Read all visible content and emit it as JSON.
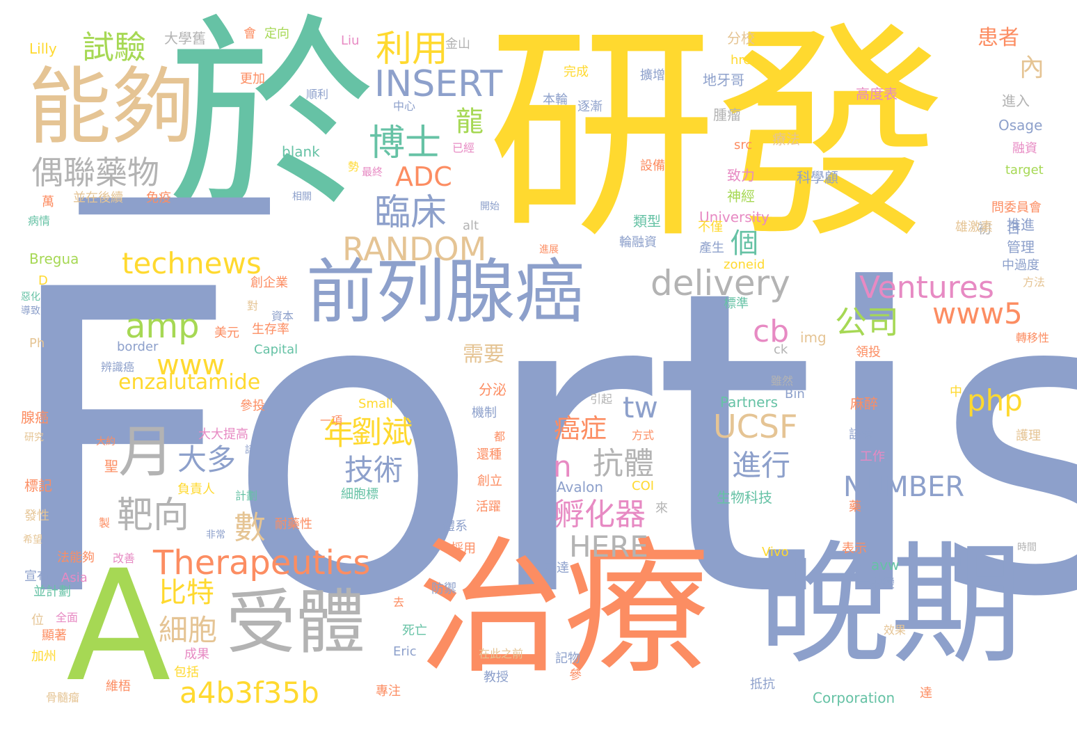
{
  "palette": {
    "blue": "#8da0cb",
    "yellow": "#ffd92f",
    "orange": "#fc8d62",
    "teal": "#66c2a5",
    "green": "#a6d854",
    "pink": "#e78ac3",
    "tan": "#e5c494",
    "gray": "#b3b3b3"
  },
  "words": [
    {
      "t": "Fortis",
      "c": "blue"
    },
    {
      "t": "研發",
      "c": "yellow"
    },
    {
      "t": "於",
      "c": "teal"
    },
    {
      "t": "治療",
      "c": "orange"
    },
    {
      "t": "晚期",
      "c": "blue"
    },
    {
      "t": "A",
      "c": "green"
    },
    {
      "t": "能夠",
      "c": "tan"
    },
    {
      "t": "一",
      "c": "blue"
    },
    {
      "t": "受體",
      "c": "gray"
    },
    {
      "t": "前列腺癌",
      "c": "blue"
    },
    {
      "t": "月",
      "c": "gray"
    },
    {
      "t": "偶聯藥物",
      "c": "gray"
    },
    {
      "t": "INSERT",
      "c": "blue"
    },
    {
      "t": "博士",
      "c": "teal"
    },
    {
      "t": "臨床",
      "c": "blue"
    },
    {
      "t": "RANDOM",
      "c": "tan"
    },
    {
      "t": "technews",
      "c": "yellow"
    },
    {
      "t": "amp",
      "c": "green"
    },
    {
      "t": "www",
      "c": "yellow"
    },
    {
      "t": "delivery",
      "c": "gray"
    },
    {
      "t": "Ventures",
      "c": "pink"
    },
    {
      "t": "Therapeutics",
      "c": "orange"
    },
    {
      "t": "a4b3f35b",
      "c": "yellow"
    },
    {
      "t": "enzalutamide",
      "c": "yellow"
    },
    {
      "t": "利用",
      "c": "yellow"
    },
    {
      "t": "試驗",
      "c": "green"
    },
    {
      "t": "ADC",
      "c": "orange"
    },
    {
      "t": "龍",
      "c": "green"
    },
    {
      "t": "公司",
      "c": "green"
    },
    {
      "t": "www5",
      "c": "orange"
    },
    {
      "t": "php",
      "c": "yellow"
    },
    {
      "t": "UCSF",
      "c": "tan"
    },
    {
      "t": "NUMBER",
      "c": "blue"
    },
    {
      "t": "HERE",
      "c": "gray"
    },
    {
      "t": "cb",
      "c": "pink"
    },
    {
      "t": "tw",
      "c": "blue"
    },
    {
      "t": "n",
      "c": "pink"
    },
    {
      "t": "抗體",
      "c": "gray"
    },
    {
      "t": "劉斌",
      "c": "yellow"
    },
    {
      "t": "技術",
      "c": "blue"
    },
    {
      "t": "大多",
      "c": "blue"
    },
    {
      "t": "靶向",
      "c": "gray"
    },
    {
      "t": "比特",
      "c": "yellow"
    },
    {
      "t": "細胞",
      "c": "tan"
    },
    {
      "t": "孵化器",
      "c": "pink"
    },
    {
      "t": "進行",
      "c": "blue"
    },
    {
      "t": "癌症",
      "c": "orange"
    },
    {
      "t": "年",
      "c": "yellow"
    },
    {
      "t": "數",
      "c": "tan"
    },
    {
      "t": "需要",
      "c": "tan"
    },
    {
      "t": "個",
      "c": "teal"
    },
    {
      "t": "患者",
      "c": "orange"
    },
    {
      "t": "內",
      "c": "tan"
    },
    {
      "t": "Lilly",
      "c": "yellow"
    },
    {
      "t": "大學舊",
      "c": "gray"
    },
    {
      "t": "會",
      "c": "orange"
    },
    {
      "t": "定向",
      "c": "green"
    },
    {
      "t": "Liu",
      "c": "pink"
    },
    {
      "t": "金山",
      "c": "gray"
    },
    {
      "t": "分校",
      "c": "tan"
    },
    {
      "t": "href",
      "c": "yellow"
    },
    {
      "t": "地牙哥",
      "c": "blue"
    },
    {
      "t": "擴增",
      "c": "blue"
    },
    {
      "t": "完成",
      "c": "yellow"
    },
    {
      "t": "更加",
      "c": "orange"
    },
    {
      "t": "順利",
      "c": "blue"
    },
    {
      "t": "本輪",
      "c": "blue"
    },
    {
      "t": "逐漸",
      "c": "blue"
    },
    {
      "t": "中心",
      "c": "blue"
    },
    {
      "t": "高度表",
      "c": "pink"
    },
    {
      "t": "進入",
      "c": "gray"
    },
    {
      "t": "腫瘤",
      "c": "gray"
    },
    {
      "t": "Osage",
      "c": "blue"
    },
    {
      "t": "融資",
      "c": "pink"
    },
    {
      "t": "blank",
      "c": "teal"
    },
    {
      "t": "已經",
      "c": "pink"
    },
    {
      "t": "src",
      "c": "orange"
    },
    {
      "t": "療法",
      "c": "tan"
    },
    {
      "t": "設備",
      "c": "orange"
    },
    {
      "t": "勢",
      "c": "yellow"
    },
    {
      "t": "最終",
      "c": "pink"
    },
    {
      "t": "致力",
      "c": "pink"
    },
    {
      "t": "科學顧",
      "c": "blue"
    },
    {
      "t": "target",
      "c": "green"
    },
    {
      "t": "並在後續",
      "c": "tan"
    },
    {
      "t": "免疫",
      "c": "orange"
    },
    {
      "t": "相關",
      "c": "blue"
    },
    {
      "t": "萬",
      "c": "orange"
    },
    {
      "t": "病情",
      "c": "teal"
    },
    {
      "t": "開始",
      "c": "blue"
    },
    {
      "t": "神經",
      "c": "green"
    },
    {
      "t": "問委員會",
      "c": "orange"
    },
    {
      "t": "University",
      "c": "pink"
    },
    {
      "t": "初",
      "c": "gray"
    },
    {
      "t": "日",
      "c": "blue"
    },
    {
      "t": "類型",
      "c": "teal"
    },
    {
      "t": "不僅",
      "c": "yellow"
    },
    {
      "t": "alt",
      "c": "gray"
    },
    {
      "t": "雄激素",
      "c": "tan"
    },
    {
      "t": "推進",
      "c": "blue"
    },
    {
      "t": "Bregua",
      "c": "green"
    },
    {
      "t": "輪融資",
      "c": "blue"
    },
    {
      "t": "產生",
      "c": "blue"
    },
    {
      "t": "管理",
      "c": "blue"
    },
    {
      "t": "進展",
      "c": "orange"
    },
    {
      "t": "zoneid",
      "c": "yellow"
    },
    {
      "t": "中過度",
      "c": "blue"
    },
    {
      "t": "D",
      "c": "yellow"
    },
    {
      "t": "創企業",
      "c": "orange"
    },
    {
      "t": "方法",
      "c": "tan"
    },
    {
      "t": "惡化",
      "c": "teal"
    },
    {
      "t": "標準",
      "c": "teal"
    },
    {
      "t": "導致",
      "c": "blue"
    },
    {
      "t": "對",
      "c": "tan"
    },
    {
      "t": "資本",
      "c": "blue"
    },
    {
      "t": "美元",
      "c": "orange"
    },
    {
      "t": "生存率",
      "c": "orange"
    },
    {
      "t": "img",
      "c": "tan"
    },
    {
      "t": "轉移性",
      "c": "orange"
    },
    {
      "t": "Ph",
      "c": "tan"
    },
    {
      "t": "border",
      "c": "blue"
    },
    {
      "t": "Capital",
      "c": "teal"
    },
    {
      "t": "ck",
      "c": "gray"
    },
    {
      "t": "領投",
      "c": "orange"
    },
    {
      "t": "辨識癌",
      "c": "blue"
    },
    {
      "t": "Bin",
      "c": "blue"
    },
    {
      "t": "雖然",
      "c": "gray"
    },
    {
      "t": "Small",
      "c": "yellow"
    },
    {
      "t": "參投",
      "c": "orange"
    },
    {
      "t": "分泌",
      "c": "orange"
    },
    {
      "t": "Partners",
      "c": "teal"
    },
    {
      "t": "中",
      "c": "yellow"
    },
    {
      "t": "腺癌",
      "c": "orange"
    },
    {
      "t": "引起",
      "c": "gray"
    },
    {
      "t": "麻醉",
      "c": "orange"
    },
    {
      "t": "研究",
      "c": "tan"
    },
    {
      "t": "一項",
      "c": "orange"
    },
    {
      "t": "機制",
      "c": "blue"
    },
    {
      "t": "大大提高",
      "c": "pink"
    },
    {
      "t": "都",
      "c": "orange"
    },
    {
      "t": "方式",
      "c": "orange"
    },
    {
      "t": "該療",
      "c": "blue"
    },
    {
      "t": "護理",
      "c": "tan"
    },
    {
      "t": "大約",
      "c": "orange"
    },
    {
      "t": "話",
      "c": "blue"
    },
    {
      "t": "聖",
      "c": "orange"
    },
    {
      "t": "還種",
      "c": "orange"
    },
    {
      "t": "工作",
      "c": "pink"
    },
    {
      "t": "標記",
      "c": "orange"
    },
    {
      "t": "負責人",
      "c": "yellow"
    },
    {
      "t": "創立",
      "c": "orange"
    },
    {
      "t": "Avalon",
      "c": "blue"
    },
    {
      "t": "COI",
      "c": "yellow"
    },
    {
      "t": "計劃",
      "c": "teal"
    },
    {
      "t": "細胞標",
      "c": "teal"
    },
    {
      "t": "生物科技",
      "c": "teal"
    },
    {
      "t": "藥",
      "c": "orange"
    },
    {
      "t": "發性",
      "c": "tan"
    },
    {
      "t": "活躍",
      "c": "orange"
    },
    {
      "t": "來",
      "c": "gray"
    },
    {
      "t": "希望",
      "c": "tan"
    },
    {
      "t": "製",
      "c": "orange"
    },
    {
      "t": "非常",
      "c": "blue"
    },
    {
      "t": "耐藥性",
      "c": "orange"
    },
    {
      "t": "體系",
      "c": "blue"
    },
    {
      "t": "表示",
      "c": "orange"
    },
    {
      "t": "時間",
      "c": "gray"
    },
    {
      "t": "法能夠",
      "c": "orange"
    },
    {
      "t": "改善",
      "c": "pink"
    },
    {
      "t": "採用",
      "c": "orange"
    },
    {
      "t": "Vivo",
      "c": "yellow"
    },
    {
      "t": "avw",
      "c": "teal"
    },
    {
      "t": "宣布",
      "c": "blue"
    },
    {
      "t": "Asia",
      "c": "pink"
    },
    {
      "t": "表達",
      "c": "blue"
    },
    {
      "t": "並計劃",
      "c": "teal"
    },
    {
      "t": "防禦",
      "c": "blue"
    },
    {
      "t": "中變",
      "c": "blue"
    },
    {
      "t": "去",
      "c": "orange"
    },
    {
      "t": "位",
      "c": "tan"
    },
    {
      "t": "全面",
      "c": "pink"
    },
    {
      "t": "死亡",
      "c": "teal"
    },
    {
      "t": "顯著",
      "c": "orange"
    },
    {
      "t": "效果",
      "c": "tan"
    },
    {
      "t": "加州",
      "c": "yellow"
    },
    {
      "t": "Eric",
      "c": "blue"
    },
    {
      "t": "成果",
      "c": "pink"
    },
    {
      "t": "在此之前",
      "c": "tan"
    },
    {
      "t": "記物",
      "c": "blue"
    },
    {
      "t": "包括",
      "c": "yellow"
    },
    {
      "t": "參",
      "c": "orange"
    },
    {
      "t": "教授",
      "c": "blue"
    },
    {
      "t": "維梧",
      "c": "orange"
    },
    {
      "t": "抵抗",
      "c": "blue"
    },
    {
      "t": "骨髓瘤",
      "c": "tan"
    },
    {
      "t": "專注",
      "c": "orange"
    },
    {
      "t": "Corporation",
      "c": "teal"
    },
    {
      "t": "達",
      "c": "orange"
    }
  ]
}
